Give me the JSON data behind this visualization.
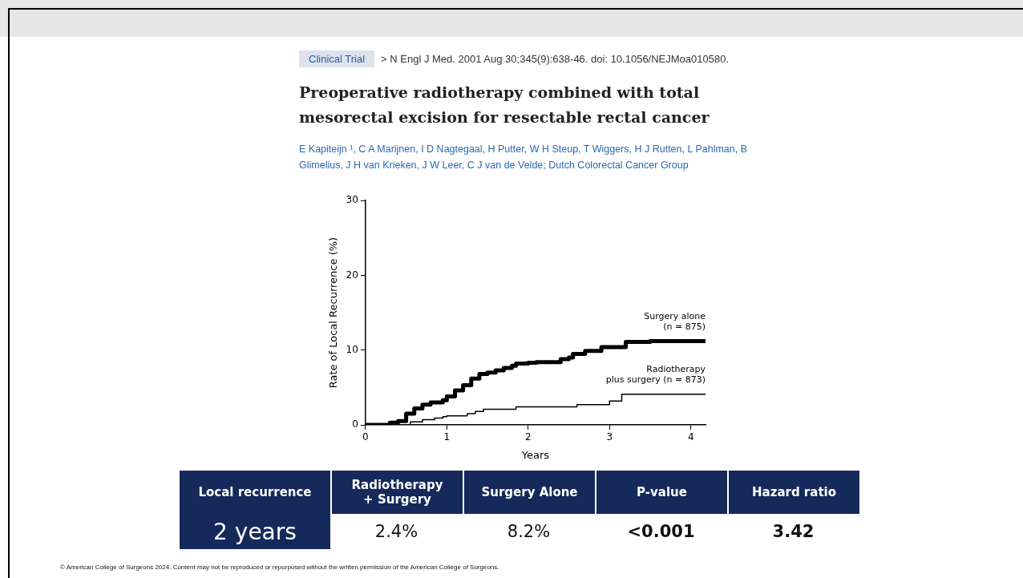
{
  "chart_data": {
    "type": "step",
    "title": "Preoperative radiotherapy combined with total mesorectal excision for resectable rectal cancer",
    "subtitle": "> N Engl J Med. 2001 Aug 30;345(9):638-46. doi: 10.1056/NEJMoa010580.",
    "xlabel": "Years",
    "ylabel": "Rate of Local Recurrence (%)",
    "xlim": [
      0,
      4.18
    ],
    "xticks": [
      0,
      1,
      2,
      3,
      4
    ],
    "ylim": [
      0,
      30
    ],
    "yticks": [
      0,
      10,
      20,
      30
    ],
    "grid": false,
    "legend": false,
    "marker": "none",
    "line_style": "solid",
    "series": [
      {
        "name": "Surgery alone\n(n = 875)",
        "color": "#000000",
        "x": [
          0,
          0.25,
          0.3,
          0.4,
          0.5,
          0.6,
          0.7,
          0.8,
          0.95,
          1.0,
          1.1,
          1.2,
          1.3,
          1.4,
          1.5,
          1.6,
          1.7,
          1.8,
          1.85,
          2.0,
          2.1,
          2.4,
          2.5,
          2.55,
          2.7,
          2.9,
          3.2,
          3.5,
          4.18
        ],
        "values": [
          0,
          0,
          0.3,
          0.5,
          1.5,
          2.2,
          2.7,
          3.0,
          3.3,
          3.8,
          4.6,
          5.3,
          6.2,
          6.8,
          7.0,
          7.3,
          7.6,
          7.9,
          8.2,
          8.3,
          8.4,
          8.8,
          9.0,
          9.5,
          9.9,
          10.4,
          11.1,
          11.2,
          11.2
        ]
      },
      {
        "name": "Radiotherapy\nplus surgery (n = 873)",
        "color": "#000000",
        "x": [
          0,
          0.45,
          0.55,
          0.7,
          0.85,
          0.95,
          1.0,
          1.25,
          1.35,
          1.45,
          1.85,
          2.6,
          3.0,
          3.15,
          4.18
        ],
        "values": [
          0,
          0,
          0.4,
          0.7,
          0.9,
          1.1,
          1.2,
          1.5,
          1.8,
          2.1,
          2.4,
          2.7,
          3.2,
          4.1,
          4.1
        ]
      }
    ],
    "annotations": [
      "Clinical Trial",
      "E Kapiteijn ¹, C A Marijnen, I D Nagtegaal, H Putter, W H Steup, T Wiggers, H J Rutten, L Pahlman, B Glimelius, J H van Krieken, J W Leer, C J van de Velde; Dutch Colorectal Cancer Group",
      "Local recurrence",
      "2 years",
      "Radiotherapy\n+ Surgery",
      "Surgery Alone",
      "P-value",
      "Hazard ratio",
      "2.4%",
      "8.2%",
      "<0.001",
      "3.42",
      "© American College of Surgeons 2024. Content may not be reproduced or repurposed without the written permission of the American College of Surgeons."
    ]
  }
}
